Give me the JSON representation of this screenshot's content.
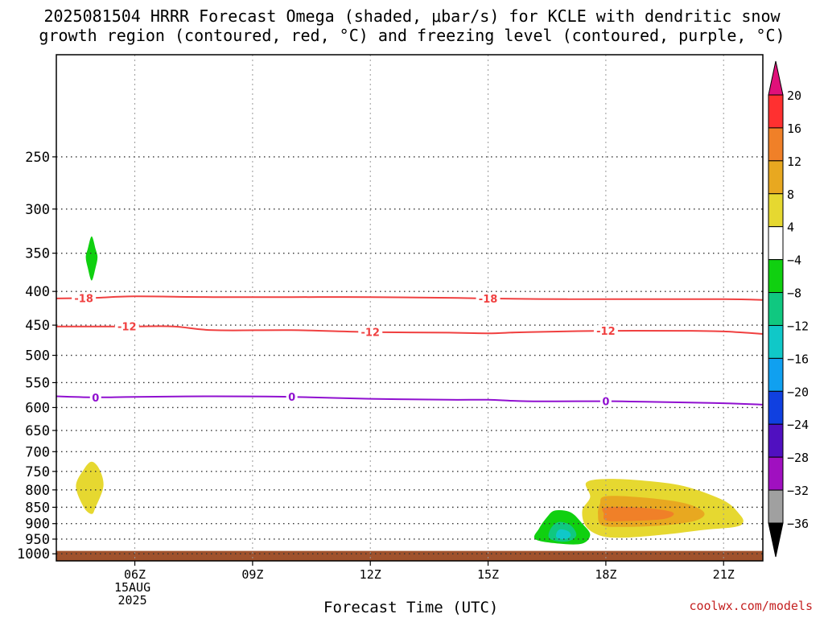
{
  "title_line1": "2025081504 HRRR Forecast Omega (shaded, μbar/s) for KCLE with dendritic snow",
  "title_line2": "growth region (contoured, red, °C) and freezing level (contoured, purple, °C)",
  "credit": "coolwx.com/models",
  "chart_data": {
    "type": "contour",
    "xlabel": "Forecast Time (UTC)",
    "x_ticks": [
      {
        "hour": 6,
        "label": "06Z",
        "sublabels": [
          "15AUG",
          "2025"
        ]
      },
      {
        "hour": 9,
        "label": "09Z"
      },
      {
        "hour": 12,
        "label": "12Z"
      },
      {
        "hour": 15,
        "label": "15Z"
      },
      {
        "hour": 18,
        "label": "18Z"
      },
      {
        "hour": 21,
        "label": "21Z"
      }
    ],
    "x_range": [
      4,
      22
    ],
    "y_scale": "log-pressure (hPa), inverted",
    "y_range": [
      1025,
      175
    ],
    "y_ticks": [
      250,
      300,
      350,
      400,
      450,
      500,
      550,
      600,
      650,
      700,
      750,
      800,
      850,
      900,
      950,
      1000
    ],
    "grid": true,
    "ground_level_hPa": 990,
    "ground_color": "#a0522d",
    "colorbar": {
      "label_values": [
        20,
        16,
        12,
        8,
        4,
        -4,
        -8,
        -12,
        -16,
        -20,
        -24,
        -28,
        -32,
        -36
      ],
      "bins": [
        {
          "from": 20,
          "to": 16,
          "color": "#ff3030"
        },
        {
          "from": 16,
          "to": 12,
          "color": "#f08028"
        },
        {
          "from": 12,
          "to": 8,
          "color": "#e8a820"
        },
        {
          "from": 8,
          "to": 4,
          "color": "#e6d830"
        },
        {
          "from": 4,
          "to": -4,
          "color": "#ffffff"
        },
        {
          "from": -4,
          "to": -8,
          "color": "#10d010"
        },
        {
          "from": -8,
          "to": -12,
          "color": "#10c880"
        },
        {
          "from": -12,
          "to": -16,
          "color": "#10c8c8"
        },
        {
          "from": -16,
          "to": -20,
          "color": "#10a0f0"
        },
        {
          "from": -20,
          "to": -24,
          "color": "#1040e0"
        },
        {
          "from": -24,
          "to": -28,
          "color": "#5010c0"
        },
        {
          "from": -28,
          "to": -32,
          "color": "#a010c0"
        },
        {
          "from": -32,
          "to": -36,
          "color": "#a0a0a0"
        }
      ],
      "top_color": "#e0107a",
      "bottom_color": "#000000"
    },
    "contours": [
      {
        "name": "temp -18",
        "label": "-18",
        "color": "#f04040",
        "points": [
          [
            4,
            410
          ],
          [
            5,
            409
          ],
          [
            6,
            407
          ],
          [
            8,
            408
          ],
          [
            10,
            408
          ],
          [
            12,
            408
          ],
          [
            14,
            409
          ],
          [
            15,
            410
          ],
          [
            17,
            411
          ],
          [
            19,
            411
          ],
          [
            21,
            411
          ],
          [
            22,
            412
          ]
        ],
        "label_hours": [
          4.7,
          15
        ]
      },
      {
        "name": "temp -12",
        "label": "-12",
        "color": "#f04040",
        "points": [
          [
            4,
            452
          ],
          [
            5,
            452
          ],
          [
            6,
            452
          ],
          [
            7,
            452
          ],
          [
            8,
            458
          ],
          [
            10,
            458
          ],
          [
            12,
            461
          ],
          [
            14,
            462
          ],
          [
            15,
            463
          ],
          [
            16,
            461
          ],
          [
            18,
            459
          ],
          [
            20,
            459
          ],
          [
            21,
            460
          ],
          [
            22,
            464
          ]
        ],
        "label_hours": [
          5.8,
          12,
          18
        ]
      },
      {
        "name": "freezing level 0",
        "label": "0",
        "color": "#9010d0",
        "points": [
          [
            4,
            577
          ],
          [
            5,
            579
          ],
          [
            6,
            578
          ],
          [
            8,
            577
          ],
          [
            10,
            578
          ],
          [
            12,
            582
          ],
          [
            14,
            584
          ],
          [
            15,
            584
          ],
          [
            16,
            587
          ],
          [
            18,
            587
          ],
          [
            19,
            588
          ],
          [
            21,
            591
          ],
          [
            22,
            594
          ]
        ],
        "label_hours": [
          5,
          10,
          18
        ]
      }
    ],
    "shaded_regions": [
      {
        "value_bin": "4-8",
        "color": "#e6d830",
        "points": [
          [
            4.9,
            725
          ],
          [
            5.1,
            745
          ],
          [
            5.2,
            790
          ],
          [
            5.0,
            850
          ],
          [
            4.9,
            870
          ],
          [
            4.7,
            850
          ],
          [
            4.5,
            790
          ],
          [
            4.7,
            745
          ]
        ]
      },
      {
        "value_bin": "-4 to -8",
        "color": "#10d010",
        "points": [
          [
            4.9,
            330
          ],
          [
            5.0,
            345
          ],
          [
            5.05,
            355
          ],
          [
            5.0,
            368
          ],
          [
            4.9,
            385
          ],
          [
            4.8,
            368
          ],
          [
            4.75,
            355
          ],
          [
            4.8,
            345
          ]
        ]
      },
      {
        "value_bin": "4-8",
        "color": "#e6d830",
        "points": [
          [
            17.5,
            780
          ],
          [
            18,
            770
          ],
          [
            19,
            775
          ],
          [
            20,
            790
          ],
          [
            21,
            830
          ],
          [
            21.4,
            870
          ],
          [
            21.5,
            895
          ],
          [
            21.3,
            910
          ],
          [
            20.5,
            920
          ],
          [
            19.5,
            935
          ],
          [
            18.5,
            945
          ],
          [
            17.9,
            940
          ],
          [
            17.5,
            910
          ],
          [
            17.4,
            860
          ],
          [
            17.6,
            820
          ]
        ]
      },
      {
        "value_bin": "8-12",
        "color": "#e8a820",
        "points": [
          [
            18,
            818
          ],
          [
            19,
            822
          ],
          [
            20,
            838
          ],
          [
            20.5,
            865
          ],
          [
            20.3,
            890
          ],
          [
            19.5,
            905
          ],
          [
            18.5,
            910
          ],
          [
            17.9,
            905
          ],
          [
            17.8,
            870
          ],
          [
            17.85,
            840
          ]
        ]
      },
      {
        "value_bin": "12-16",
        "color": "#f08028",
        "points": [
          [
            18,
            850
          ],
          [
            19,
            852
          ],
          [
            19.7,
            865
          ],
          [
            19.5,
            885
          ],
          [
            18.5,
            892
          ],
          [
            18,
            890
          ],
          [
            17.95,
            870
          ]
        ]
      },
      {
        "value_bin": "-4 to -8",
        "color": "#10d010",
        "points": [
          [
            16.7,
            860
          ],
          [
            17.1,
            865
          ],
          [
            17.4,
            900
          ],
          [
            17.6,
            935
          ],
          [
            17.4,
            965
          ],
          [
            16.8,
            965
          ],
          [
            16.2,
            950
          ],
          [
            16.3,
            915
          ],
          [
            16.5,
            880
          ]
        ]
      },
      {
        "value_bin": "-8 to -12",
        "color": "#10c880",
        "points": [
          [
            16.8,
            895
          ],
          [
            17.1,
            905
          ],
          [
            17.25,
            935
          ],
          [
            17.1,
            955
          ],
          [
            16.8,
            958
          ],
          [
            16.55,
            945
          ],
          [
            16.6,
            915
          ]
        ]
      },
      {
        "value_bin": "-12 to -16",
        "color": "#10c8c8",
        "points": [
          [
            16.85,
            918
          ],
          [
            17.05,
            925
          ],
          [
            17.1,
            940
          ],
          [
            16.95,
            950
          ],
          [
            16.75,
            945
          ],
          [
            16.75,
            928
          ]
        ]
      }
    ]
  }
}
